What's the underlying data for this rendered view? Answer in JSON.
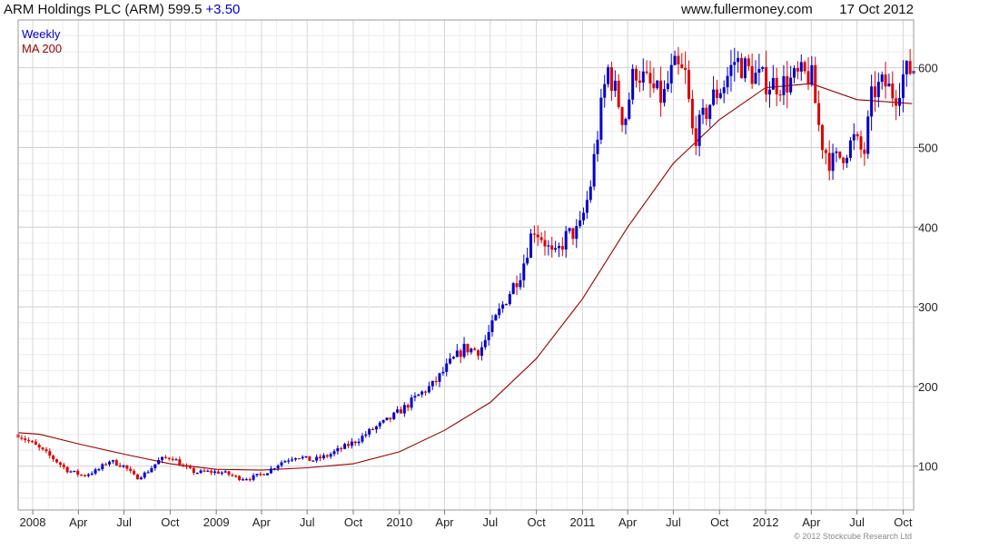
{
  "header": {
    "title": "ARM Holdings PLC (ARM) 599.5",
    "change": "+3.50",
    "site": "www.fullermoney.com",
    "date": "17 Oct 2012"
  },
  "legend": {
    "weekly": "Weekly",
    "ma": "MA 200"
  },
  "copyright": "© 2012 Stockcube Research Ltd",
  "colors": {
    "up": "#0000cc",
    "down": "#dd0000",
    "ma": "#990000",
    "title_change": "#0000cc"
  },
  "chart_data": {
    "type": "candlestick",
    "title": "ARM Holdings PLC (ARM) 599.5 +3.50",
    "interval": "Weekly",
    "y_axis_position": "right",
    "grid": true,
    "legend_position": "top-left",
    "ylim": [
      45,
      660
    ],
    "y_ticks": [
      100,
      200,
      300,
      400,
      500,
      600
    ],
    "x_range": [
      "2007-12-03",
      "2012-10-22"
    ],
    "x_ticks": [
      {
        "date": "2008-01-01",
        "label": "2008"
      },
      {
        "date": "2008-04-01",
        "label": "Apr"
      },
      {
        "date": "2008-07-01",
        "label": "Jul"
      },
      {
        "date": "2008-10-01",
        "label": "Oct"
      },
      {
        "date": "2009-01-01",
        "label": "2009"
      },
      {
        "date": "2009-04-01",
        "label": "Apr"
      },
      {
        "date": "2009-07-01",
        "label": "Jul"
      },
      {
        "date": "2009-10-01",
        "label": "Oct"
      },
      {
        "date": "2010-01-01",
        "label": "2010"
      },
      {
        "date": "2010-04-01",
        "label": "Apr"
      },
      {
        "date": "2010-07-01",
        "label": "Jul"
      },
      {
        "date": "2010-10-01",
        "label": "Oct"
      },
      {
        "date": "2011-01-01",
        "label": "2011"
      },
      {
        "date": "2011-04-01",
        "label": "Apr"
      },
      {
        "date": "2011-07-01",
        "label": "Jul"
      },
      {
        "date": "2011-10-01",
        "label": "Oct"
      },
      {
        "date": "2012-01-01",
        "label": "2012"
      },
      {
        "date": "2012-04-01",
        "label": "Apr"
      },
      {
        "date": "2012-07-01",
        "label": "Jul"
      },
      {
        "date": "2012-10-01",
        "label": "Oct"
      }
    ],
    "price_path": [
      [
        "2007-12-03",
        140
      ],
      [
        "2008-01-01",
        128
      ],
      [
        "2008-02-10",
        110
      ],
      [
        "2008-03-10",
        95
      ],
      [
        "2008-04-10",
        88
      ],
      [
        "2008-05-10",
        95
      ],
      [
        "2008-06-01",
        107
      ],
      [
        "2008-07-01",
        100
      ],
      [
        "2008-07-25",
        85
      ],
      [
        "2008-08-15",
        92
      ],
      [
        "2008-09-10",
        108
      ],
      [
        "2008-10-05",
        112
      ],
      [
        "2008-10-25",
        100
      ],
      [
        "2008-11-20",
        92
      ],
      [
        "2008-12-15",
        93
      ],
      [
        "2009-01-15",
        92
      ],
      [
        "2009-02-15",
        85
      ],
      [
        "2009-03-10",
        85
      ],
      [
        "2009-04-10",
        92
      ],
      [
        "2009-05-10",
        105
      ],
      [
        "2009-06-10",
        113
      ],
      [
        "2009-07-10",
        107
      ],
      [
        "2009-08-10",
        113
      ],
      [
        "2009-09-10",
        123
      ],
      [
        "2009-10-10",
        133
      ],
      [
        "2009-11-10",
        147
      ],
      [
        "2009-12-10",
        158
      ],
      [
        "2010-01-10",
        173
      ],
      [
        "2010-02-10",
        190
      ],
      [
        "2010-03-10",
        203
      ],
      [
        "2010-04-10",
        228
      ],
      [
        "2010-05-10",
        248
      ],
      [
        "2010-06-10",
        245
      ],
      [
        "2010-07-01",
        270
      ],
      [
        "2010-07-20",
        295
      ],
      [
        "2010-08-10",
        320
      ],
      [
        "2010-09-01",
        345
      ],
      [
        "2010-09-25",
        400
      ],
      [
        "2010-10-15",
        385
      ],
      [
        "2010-11-05",
        360
      ],
      [
        "2010-12-01",
        390
      ],
      [
        "2010-12-25",
        395
      ],
      [
        "2011-01-15",
        445
      ],
      [
        "2011-02-05",
        540
      ],
      [
        "2011-02-20",
        600
      ],
      [
        "2011-03-10",
        565
      ],
      [
        "2011-03-25",
        530
      ],
      [
        "2011-04-15",
        600
      ],
      [
        "2011-05-10",
        580
      ],
      [
        "2011-06-10",
        560
      ],
      [
        "2011-07-01",
        600
      ],
      [
        "2011-07-25",
        590
      ],
      [
        "2011-08-10",
        510
      ],
      [
        "2011-08-25",
        530
      ],
      [
        "2011-09-15",
        560
      ],
      [
        "2011-10-10",
        580
      ],
      [
        "2011-11-01",
        610
      ],
      [
        "2011-11-20",
        600
      ],
      [
        "2011-12-10",
        590
      ],
      [
        "2012-01-10",
        580
      ],
      [
        "2012-02-10",
        580
      ],
      [
        "2012-03-10",
        590
      ],
      [
        "2012-04-01",
        590
      ],
      [
        "2012-04-20",
        510
      ],
      [
        "2012-05-10",
        480
      ],
      [
        "2012-06-01",
        490
      ],
      [
        "2012-06-25",
        510
      ],
      [
        "2012-07-15",
        490
      ],
      [
        "2012-08-01",
        570
      ],
      [
        "2012-08-25",
        580
      ],
      [
        "2012-09-15",
        565
      ],
      [
        "2012-10-01",
        590
      ],
      [
        "2012-10-19",
        599.5
      ]
    ],
    "ma_200": [
      [
        "2007-12-03",
        142
      ],
      [
        "2008-01-15",
        140
      ],
      [
        "2008-04-01",
        128
      ],
      [
        "2008-07-01",
        115
      ],
      [
        "2008-10-01",
        103
      ],
      [
        "2009-01-01",
        96
      ],
      [
        "2009-04-01",
        95
      ],
      [
        "2009-07-01",
        98
      ],
      [
        "2009-10-01",
        103
      ],
      [
        "2010-01-01",
        118
      ],
      [
        "2010-04-01",
        145
      ],
      [
        "2010-07-01",
        180
      ],
      [
        "2010-10-01",
        235
      ],
      [
        "2011-01-01",
        310
      ],
      [
        "2011-04-01",
        400
      ],
      [
        "2011-07-01",
        480
      ],
      [
        "2011-10-01",
        535
      ],
      [
        "2012-01-01",
        575
      ],
      [
        "2012-04-01",
        580
      ],
      [
        "2012-07-01",
        560
      ],
      [
        "2012-10-19",
        555
      ]
    ]
  }
}
